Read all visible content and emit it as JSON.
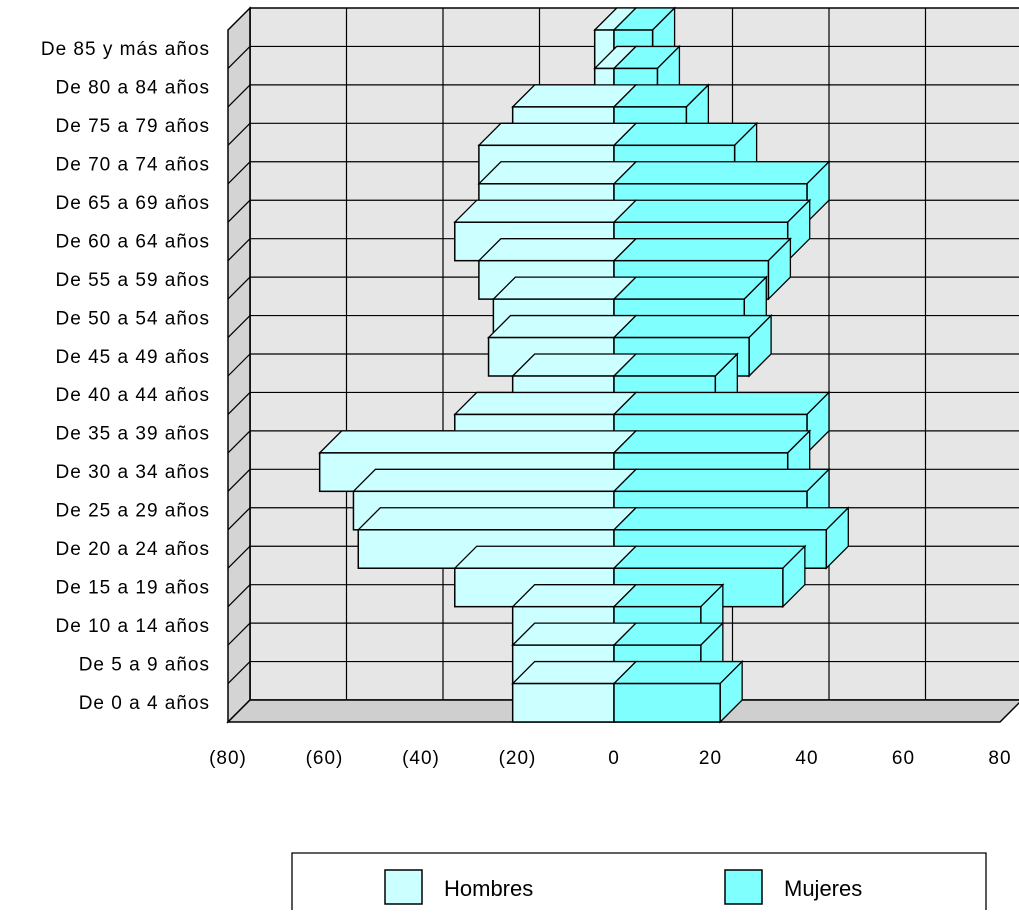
{
  "chart_data": {
    "type": "bar",
    "orientation": "horizontal",
    "style": "population-pyramid-3d",
    "categories": [
      "De 85 y más años",
      "De 80 a 84 años",
      "De 75 a 79 años",
      "De 70 a 74 años",
      "De 65 a 69 años",
      "De 60 a 64 años",
      "De 55 a 59 años",
      "De 50 a 54 años",
      "De 45 a 49 años",
      "De 40 a 44 años",
      "De 35 a 39 años",
      "De 30 a 34 años",
      "De 25 a 29 años",
      "De 20 a 24 años",
      "De 15 a 19 años",
      "De 10 a 14 años",
      "De 5 a 9 años",
      "De 0 a 4 años"
    ],
    "series": [
      {
        "name": "Hombres",
        "color": "#ccffff",
        "values": [
          -4,
          -4,
          -21,
          -28,
          -28,
          -33,
          -28,
          -25,
          -26,
          -21,
          -33,
          -61,
          -54,
          -53,
          -33,
          -21,
          -21,
          -21
        ]
      },
      {
        "name": "Mujeres",
        "color": "#80ffff",
        "values": [
          8,
          9,
          15,
          25,
          40,
          36,
          32,
          27,
          28,
          21,
          40,
          36,
          40,
          44,
          35,
          18,
          18,
          22
        ]
      }
    ],
    "xlim": [
      -80,
      80
    ],
    "x_ticks": [
      -80,
      -60,
      -40,
      -20,
      0,
      20,
      40,
      60,
      80
    ],
    "x_tick_labels": [
      "(80)",
      "(60)",
      "(40)",
      "(20)",
      "0",
      "20",
      "40",
      "60",
      "80"
    ],
    "title": "",
    "xlabel": "",
    "ylabel": "",
    "grid": true,
    "legend_position": "bottom",
    "wall_color": "#e6e6e6"
  }
}
